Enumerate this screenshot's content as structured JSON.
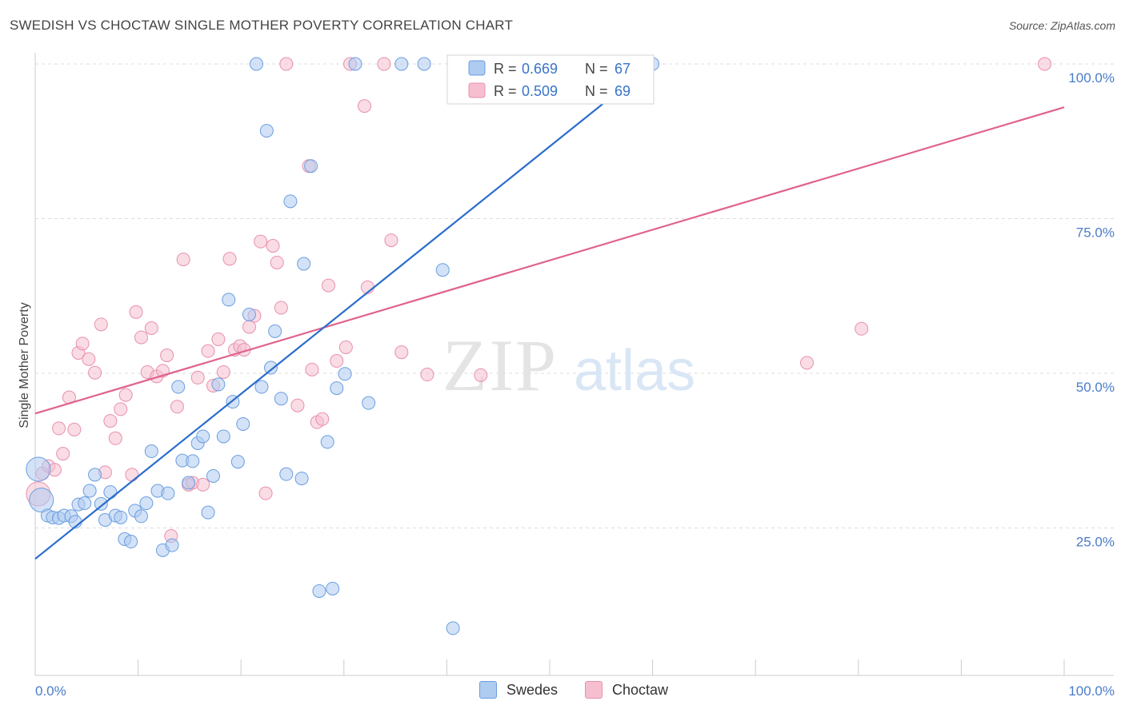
{
  "header": {
    "title": "SWEDISH VS CHOCTAW SINGLE MOTHER POVERTY CORRELATION CHART",
    "source": "Source: ZipAtlas.com"
  },
  "watermark": {
    "zip": "ZIP",
    "atlas": "atlas"
  },
  "legend_top": {
    "rows": [
      {
        "r_label": "R = ",
        "r_value": "0.669",
        "n_label": "N = ",
        "n_value": "67"
      },
      {
        "r_label": "R = ",
        "r_value": "0.509",
        "n_label": "N = ",
        "n_value": "69"
      }
    ]
  },
  "legend_bottom": {
    "swedes": "Swedes",
    "choctaw": "Choctaw"
  },
  "colors": {
    "swedes_fill": "#aecbf0",
    "swedes_stroke": "#6a9ee0",
    "swedes_line": "#2a6dcc",
    "choctaw_fill": "#f6bfd0",
    "choctaw_stroke": "#e890ad",
    "choctaw_line": "#e0628d",
    "tick_text": "#4a7cc9",
    "grid": "#dddddd"
  },
  "chart_data": {
    "type": "scatter",
    "title": "SWEDISH VS CHOCTAW SINGLE MOTHER POVERTY CORRELATION CHART",
    "xlabel": "",
    "ylabel": "Single Mother Poverty",
    "xlim": [
      0,
      100
    ],
    "ylim": [
      0,
      100
    ],
    "x_tick_labels": [
      "0.0%",
      "100.0%"
    ],
    "y_ticks": [
      25,
      50,
      75,
      100
    ],
    "y_tick_labels": [
      "25.0%",
      "50.0%",
      "75.0%",
      "100.0%"
    ],
    "grid": true,
    "series": [
      {
        "name": "Swedes",
        "R": 0.669,
        "N": 67,
        "trend": {
          "x": [
            0,
            60
          ],
          "y": [
            20.0,
            100.0
          ]
        },
        "points": [
          {
            "x": 0.3,
            "y": 34.5,
            "big": true
          },
          {
            "x": 0.6,
            "y": 29.5,
            "big": true
          },
          {
            "x": 1.2,
            "y": 27.0
          },
          {
            "x": 1.7,
            "y": 26.7
          },
          {
            "x": 2.3,
            "y": 26.6
          },
          {
            "x": 2.8,
            "y": 27.0
          },
          {
            "x": 3.5,
            "y": 26.9
          },
          {
            "x": 3.9,
            "y": 26.0
          },
          {
            "x": 4.2,
            "y": 28.8
          },
          {
            "x": 4.8,
            "y": 29.0
          },
          {
            "x": 5.3,
            "y": 31.0
          },
          {
            "x": 5.8,
            "y": 33.6
          },
          {
            "x": 6.4,
            "y": 28.9
          },
          {
            "x": 6.8,
            "y": 26.3
          },
          {
            "x": 7.3,
            "y": 30.8
          },
          {
            "x": 7.8,
            "y": 27.0
          },
          {
            "x": 8.3,
            "y": 26.7
          },
          {
            "x": 8.7,
            "y": 23.2
          },
          {
            "x": 9.3,
            "y": 22.8
          },
          {
            "x": 9.7,
            "y": 27.8
          },
          {
            "x": 10.3,
            "y": 26.9
          },
          {
            "x": 10.8,
            "y": 29.0
          },
          {
            "x": 11.3,
            "y": 37.4
          },
          {
            "x": 11.9,
            "y": 31.0
          },
          {
            "x": 12.4,
            "y": 21.4
          },
          {
            "x": 12.9,
            "y": 30.6
          },
          {
            "x": 13.3,
            "y": 22.2
          },
          {
            "x": 13.9,
            "y": 47.8
          },
          {
            "x": 14.3,
            "y": 35.9
          },
          {
            "x": 14.9,
            "y": 32.3
          },
          {
            "x": 15.3,
            "y": 35.8
          },
          {
            "x": 15.8,
            "y": 38.7
          },
          {
            "x": 16.3,
            "y": 39.8
          },
          {
            "x": 16.8,
            "y": 27.5
          },
          {
            "x": 17.3,
            "y": 33.4
          },
          {
            "x": 17.8,
            "y": 48.2
          },
          {
            "x": 18.3,
            "y": 39.8
          },
          {
            "x": 18.8,
            "y": 61.9
          },
          {
            "x": 19.2,
            "y": 45.4
          },
          {
            "x": 19.7,
            "y": 35.7
          },
          {
            "x": 20.2,
            "y": 41.8
          },
          {
            "x": 20.8,
            "y": 59.5
          },
          {
            "x": 21.5,
            "y": 100.0
          },
          {
            "x": 22.0,
            "y": 47.8
          },
          {
            "x": 22.5,
            "y": 89.2
          },
          {
            "x": 22.9,
            "y": 50.9
          },
          {
            "x": 23.3,
            "y": 56.8
          },
          {
            "x": 23.9,
            "y": 45.9
          },
          {
            "x": 24.4,
            "y": 33.7
          },
          {
            "x": 24.8,
            "y": 77.8
          },
          {
            "x": 25.9,
            "y": 33.0
          },
          {
            "x": 26.1,
            "y": 67.7
          },
          {
            "x": 26.8,
            "y": 83.5
          },
          {
            "x": 27.6,
            "y": 14.8
          },
          {
            "x": 28.4,
            "y": 38.9
          },
          {
            "x": 28.9,
            "y": 15.2
          },
          {
            "x": 29.3,
            "y": 47.6
          },
          {
            "x": 30.1,
            "y": 49.9
          },
          {
            "x": 31.1,
            "y": 100.0
          },
          {
            "x": 32.4,
            "y": 45.2
          },
          {
            "x": 35.6,
            "y": 100.0
          },
          {
            "x": 37.8,
            "y": 100.0
          },
          {
            "x": 39.6,
            "y": 66.7
          },
          {
            "x": 40.6,
            "y": 8.8
          },
          {
            "x": 52.3,
            "y": 100.0
          },
          {
            "x": 59.3,
            "y": 100.0
          },
          {
            "x": 60.0,
            "y": 100.0
          }
        ]
      },
      {
        "name": "Choctaw",
        "R": 0.509,
        "N": 69,
        "trend": {
          "x": [
            0,
            100
          ],
          "y": [
            43.5,
            93.0
          ]
        },
        "points": [
          {
            "x": 0.3,
            "y": 30.5,
            "big": true
          },
          {
            "x": 0.7,
            "y": 33.8
          },
          {
            "x": 1.3,
            "y": 35.0
          },
          {
            "x": 1.9,
            "y": 34.4
          },
          {
            "x": 2.3,
            "y": 41.1
          },
          {
            "x": 2.7,
            "y": 37.0
          },
          {
            "x": 3.3,
            "y": 46.1
          },
          {
            "x": 3.8,
            "y": 40.9
          },
          {
            "x": 4.2,
            "y": 53.3
          },
          {
            "x": 4.6,
            "y": 54.8
          },
          {
            "x": 5.2,
            "y": 52.3
          },
          {
            "x": 5.8,
            "y": 50.1
          },
          {
            "x": 6.4,
            "y": 57.9
          },
          {
            "x": 6.8,
            "y": 34.0
          },
          {
            "x": 7.3,
            "y": 42.3
          },
          {
            "x": 7.8,
            "y": 39.5
          },
          {
            "x": 8.3,
            "y": 44.2
          },
          {
            "x": 8.8,
            "y": 46.5
          },
          {
            "x": 9.4,
            "y": 33.6
          },
          {
            "x": 9.8,
            "y": 59.9
          },
          {
            "x": 10.3,
            "y": 55.8
          },
          {
            "x": 10.9,
            "y": 50.2
          },
          {
            "x": 11.3,
            "y": 57.3
          },
          {
            "x": 11.8,
            "y": 49.5
          },
          {
            "x": 12.4,
            "y": 50.4
          },
          {
            "x": 12.8,
            "y": 52.9
          },
          {
            "x": 13.2,
            "y": 23.7
          },
          {
            "x": 13.8,
            "y": 44.6
          },
          {
            "x": 14.4,
            "y": 68.4
          },
          {
            "x": 14.9,
            "y": 32.0
          },
          {
            "x": 15.3,
            "y": 32.3
          },
          {
            "x": 15.8,
            "y": 49.3
          },
          {
            "x": 16.3,
            "y": 32.0
          },
          {
            "x": 16.8,
            "y": 53.6
          },
          {
            "x": 17.3,
            "y": 48.0
          },
          {
            "x": 17.8,
            "y": 55.5
          },
          {
            "x": 18.3,
            "y": 50.2
          },
          {
            "x": 18.9,
            "y": 68.5
          },
          {
            "x": 19.4,
            "y": 53.8
          },
          {
            "x": 19.9,
            "y": 54.4
          },
          {
            "x": 20.3,
            "y": 53.8
          },
          {
            "x": 20.8,
            "y": 57.5
          },
          {
            "x": 21.3,
            "y": 59.3
          },
          {
            "x": 21.9,
            "y": 71.3
          },
          {
            "x": 22.4,
            "y": 30.6
          },
          {
            "x": 23.1,
            "y": 70.6
          },
          {
            "x": 23.5,
            "y": 67.9
          },
          {
            "x": 23.9,
            "y": 60.6
          },
          {
            "x": 24.4,
            "y": 100.0
          },
          {
            "x": 25.5,
            "y": 44.8
          },
          {
            "x": 26.6,
            "y": 83.5
          },
          {
            "x": 26.9,
            "y": 50.6
          },
          {
            "x": 27.4,
            "y": 42.1
          },
          {
            "x": 27.9,
            "y": 42.6
          },
          {
            "x": 28.5,
            "y": 64.2
          },
          {
            "x": 29.3,
            "y": 52.0
          },
          {
            "x": 30.2,
            "y": 54.2
          },
          {
            "x": 32.0,
            "y": 93.2
          },
          {
            "x": 32.3,
            "y": 63.9
          },
          {
            "x": 33.9,
            "y": 100.0
          },
          {
            "x": 34.6,
            "y": 71.5
          },
          {
            "x": 35.6,
            "y": 53.4
          },
          {
            "x": 38.1,
            "y": 49.8
          },
          {
            "x": 43.3,
            "y": 49.7
          },
          {
            "x": 45.1,
            "y": 100.0
          },
          {
            "x": 75.0,
            "y": 51.7
          },
          {
            "x": 80.3,
            "y": 57.2
          },
          {
            "x": 98.1,
            "y": 100.0
          },
          {
            "x": 30.6,
            "y": 100.0
          }
        ]
      }
    ]
  }
}
